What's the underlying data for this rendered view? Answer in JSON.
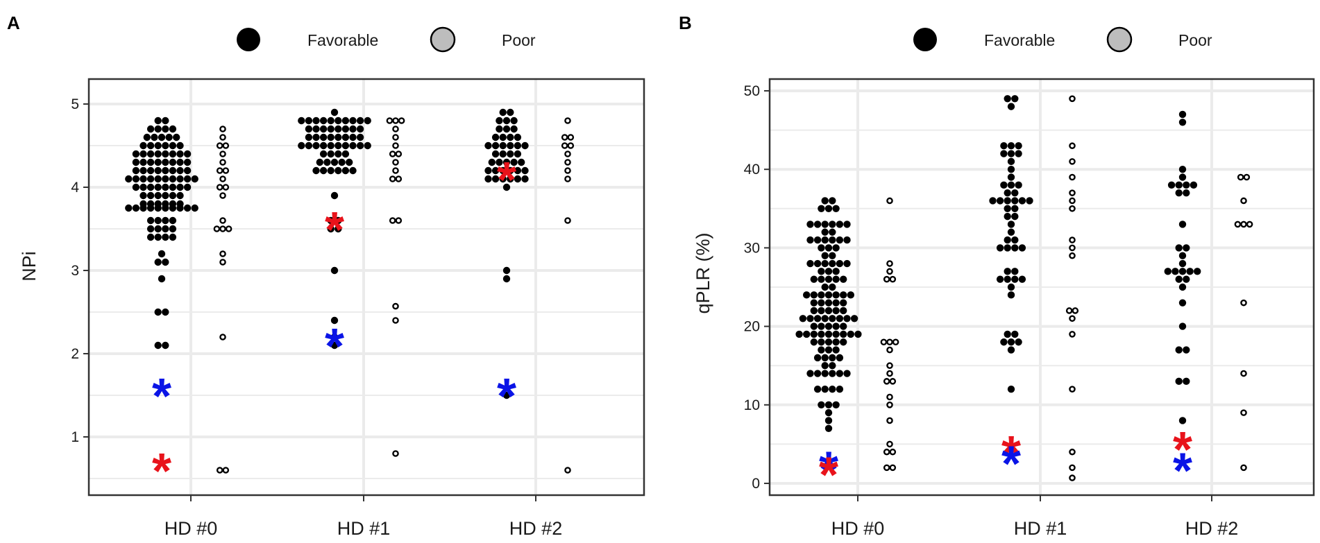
{
  "legend": {
    "favorable_label": "Favorable",
    "poor_label": "Poor",
    "favorable_color": "#000000",
    "poor_color": "#bdbdbd"
  },
  "colors": {
    "favorable_point": "#000000",
    "poor_point_fill": "#ffffff",
    "poor_point_stroke": "#000000",
    "marker_red": "#e8131b",
    "marker_blue": "#0a14e6",
    "grid": "#ebebeb"
  },
  "chart_data": [
    {
      "type": "scatter",
      "panel_label": "A",
      "title": "",
      "xlabel": "",
      "ylabel": "NPi",
      "ylim": [
        0.3,
        5.3
      ],
      "yticks": [
        1,
        2,
        3,
        4,
        5
      ],
      "categories": [
        "HD #0",
        "HD #1",
        "HD #2"
      ],
      "series": [
        {
          "name": "Favorable",
          "groups": [
            [
              4.8,
              4.8,
              4.7,
              4.7,
              4.7,
              4.7,
              4.6,
              4.6,
              4.6,
              4.6,
              4.6,
              4.5,
              4.5,
              4.5,
              4.5,
              4.5,
              4.5,
              4.4,
              4.4,
              4.4,
              4.4,
              4.4,
              4.4,
              4.4,
              4.4,
              4.3,
              4.3,
              4.3,
              4.3,
              4.3,
              4.3,
              4.3,
              4.3,
              4.2,
              4.2,
              4.2,
              4.2,
              4.2,
              4.2,
              4.2,
              4.2,
              4.1,
              4.1,
              4.1,
              4.1,
              4.1,
              4.1,
              4.1,
              4.1,
              4.1,
              4.1,
              4.0,
              4.0,
              4.0,
              4.0,
              4.0,
              4.0,
              4.0,
              4.0,
              3.9,
              3.9,
              3.9,
              3.9,
              3.9,
              3.9,
              3.8,
              3.8,
              3.8,
              3.8,
              3.8,
              3.8,
              3.75,
              3.75,
              3.75,
              3.75,
              3.75,
              3.75,
              3.75,
              3.75,
              3.75,
              3.75,
              3.6,
              3.6,
              3.6,
              3.6,
              3.5,
              3.5,
              3.5,
              3.5,
              3.4,
              3.4,
              3.4,
              3.4,
              3.2,
              3.1,
              3.1,
              2.9,
              2.5,
              2.5,
              2.1,
              2.1
            ],
            [
              4.9,
              4.8,
              4.8,
              4.8,
              4.8,
              4.8,
              4.8,
              4.8,
              4.8,
              4.8,
              4.8,
              4.7,
              4.7,
              4.7,
              4.7,
              4.7,
              4.7,
              4.7,
              4.7,
              4.6,
              4.6,
              4.6,
              4.6,
              4.6,
              4.6,
              4.6,
              4.6,
              4.5,
              4.5,
              4.5,
              4.5,
              4.5,
              4.5,
              4.5,
              4.5,
              4.5,
              4.5,
              4.4,
              4.4,
              4.4,
              4.4,
              4.3,
              4.3,
              4.3,
              4.3,
              4.3,
              4.2,
              4.2,
              4.2,
              4.2,
              4.2,
              4.2,
              3.9,
              3.6,
              3.6,
              3.5,
              3.5,
              3.0,
              2.4,
              2.2,
              2.1
            ],
            [
              4.9,
              4.9,
              4.8,
              4.8,
              4.8,
              4.7,
              4.7,
              4.7,
              4.6,
              4.6,
              4.6,
              4.6,
              4.5,
              4.5,
              4.5,
              4.5,
              4.5,
              4.5,
              4.4,
              4.4,
              4.4,
              4.4,
              4.3,
              4.3,
              4.3,
              4.3,
              4.3,
              4.2,
              4.2,
              4.2,
              4.2,
              4.2,
              4.2,
              4.1,
              4.1,
              4.1,
              4.1,
              4.1,
              4.1,
              4.0,
              3.0,
              2.9,
              1.5
            ]
          ]
        },
        {
          "name": "Poor",
          "groups": [
            [
              4.7,
              4.6,
              4.5,
              4.5,
              4.4,
              4.3,
              4.2,
              4.2,
              4.1,
              4.0,
              4.0,
              3.9,
              3.6,
              3.5,
              3.5,
              3.5,
              3.2,
              3.1,
              2.2,
              0.6,
              0.6
            ],
            [
              4.8,
              4.8,
              4.8,
              4.7,
              4.6,
              4.5,
              4.4,
              4.4,
              4.3,
              4.2,
              4.1,
              4.1,
              3.6,
              3.6,
              2.57,
              2.4,
              0.8
            ],
            [
              4.8,
              4.6,
              4.6,
              4.5,
              4.5,
              4.4,
              4.3,
              4.2,
              4.1,
              3.6,
              0.6
            ]
          ]
        }
      ],
      "markers": [
        {
          "group": "HD #0",
          "value": 1.65,
          "color": "blue"
        },
        {
          "group": "HD #0",
          "value": 0.75,
          "color": "red"
        },
        {
          "group": "HD #1",
          "value": 3.65,
          "color": "red"
        },
        {
          "group": "HD #1",
          "value": 2.25,
          "color": "blue"
        },
        {
          "group": "HD #2",
          "value": 4.25,
          "color": "red"
        },
        {
          "group": "HD #2",
          "value": 1.65,
          "color": "blue"
        }
      ]
    },
    {
      "type": "scatter",
      "panel_label": "B",
      "title": "",
      "xlabel": "",
      "ylabel": "qPLR (%)",
      "ylim": [
        -1.5,
        51.5
      ],
      "yticks": [
        0,
        10,
        20,
        30,
        40,
        50
      ],
      "categories": [
        "HD #0",
        "HD #1",
        "HD #2"
      ],
      "series": [
        {
          "name": "Favorable",
          "groups": [
            [
              36,
              36,
              35,
              35,
              35,
              33,
              33,
              33,
              33,
              33,
              33,
              32,
              32,
              31,
              31,
              31,
              31,
              31,
              31,
              30,
              30,
              30,
              29,
              29,
              28,
              28,
              28,
              28,
              28,
              28,
              27,
              27,
              27,
              26,
              26,
              26,
              26,
              26,
              25,
              25,
              24,
              24,
              24,
              24,
              24,
              24,
              24,
              23,
              23,
              23,
              23,
              23,
              22,
              22,
              22,
              22,
              22,
              21,
              21,
              21,
              21,
              21,
              21,
              21,
              21,
              20,
              20,
              20,
              20,
              20,
              19,
              19,
              19,
              19,
              19,
              19,
              19,
              19,
              19,
              18,
              18,
              18,
              18,
              18,
              17,
              17,
              17,
              16,
              16,
              16,
              16,
              15,
              15,
              14,
              14,
              14,
              14,
              14,
              14,
              12,
              12,
              12,
              12,
              10,
              10,
              10,
              9,
              8,
              7
            ],
            [
              49,
              49,
              48,
              43,
              43,
              43,
              42,
              42,
              42,
              41,
              40,
              39,
              38,
              38,
              38,
              37,
              37,
              36,
              36,
              36,
              36,
              36,
              36,
              35,
              35,
              34,
              34,
              33,
              32,
              31,
              31,
              30,
              30,
              30,
              30,
              27,
              27,
              26,
              26,
              26,
              26,
              25,
              24,
              19,
              19,
              18,
              18,
              18,
              17,
              12
            ],
            [
              47,
              46,
              40,
              39,
              38,
              38,
              38,
              38,
              37,
              37,
              33,
              30,
              30,
              29,
              28,
              27,
              27,
              27,
              27,
              27,
              26,
              26,
              25,
              23,
              20,
              17,
              17,
              13,
              13,
              8
            ]
          ]
        },
        {
          "name": "Poor",
          "groups": [
            [
              36,
              28,
              27,
              26,
              26,
              18,
              18,
              18,
              17,
              15,
              14,
              13,
              13,
              11,
              10,
              8,
              5,
              4,
              4,
              2,
              2
            ],
            [
              49,
              43,
              41,
              39,
              37,
              36,
              35,
              31,
              30,
              29,
              22,
              22,
              21,
              19,
              12,
              4,
              2,
              0.7
            ],
            [
              39,
              39,
              36,
              33,
              33,
              33,
              23,
              14,
              9,
              2
            ]
          ]
        }
      ],
      "markers": [
        {
          "group": "HD #0",
          "value": 3.5,
          "color": "blue"
        },
        {
          "group": "HD #0",
          "value": 2.8,
          "color": "red"
        },
        {
          "group": "HD #1",
          "value": 5.5,
          "color": "red"
        },
        {
          "group": "HD #1",
          "value": 4.2,
          "color": "blue"
        },
        {
          "group": "HD #2",
          "value": 6.0,
          "color": "red"
        },
        {
          "group": "HD #2",
          "value": 3.3,
          "color": "blue"
        }
      ]
    }
  ]
}
